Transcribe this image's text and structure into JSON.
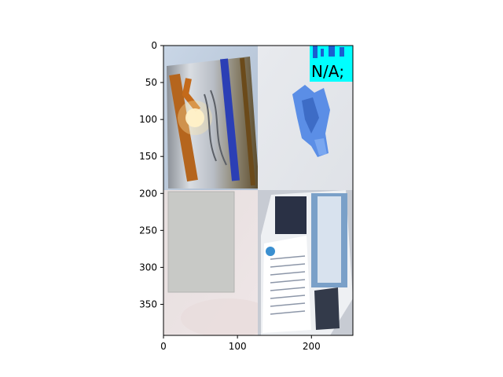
{
  "figure": {
    "x_ticks": [
      "0",
      "100",
      "200"
    ],
    "y_ticks": [
      "0",
      "50",
      "100",
      "150",
      "200",
      "250",
      "300",
      "350"
    ],
    "x_range": [
      0,
      256
    ],
    "y_range": [
      0,
      392
    ]
  },
  "tiles": [
    {
      "name": "tile-can",
      "description": "beer can with label",
      "row": 0,
      "col": 0
    },
    {
      "name": "tile-crumpled-paper",
      "description": "crumpled blue paper",
      "row": 0,
      "col": 1
    },
    {
      "name": "tile-cardboard",
      "description": "grey cardboard sheet",
      "row": 1,
      "col": 0
    },
    {
      "name": "tile-magazine",
      "description": "open magazine",
      "row": 1,
      "col": 1
    }
  ],
  "overlay": {
    "label": "N/A;",
    "bg_color": "#00ffff"
  },
  "colors": {
    "axis": "#000000",
    "background": "#ffffff"
  }
}
